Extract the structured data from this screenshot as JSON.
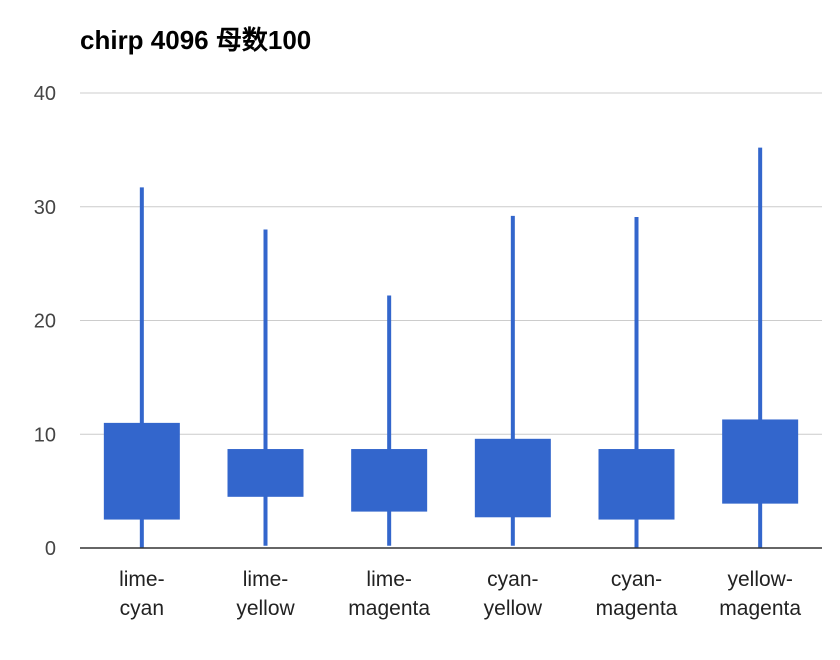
{
  "chart_data": {
    "type": "candlestick",
    "title": "chirp 4096 母数100",
    "xlabel": "",
    "ylabel": "",
    "ylim": [
      0,
      40
    ],
    "yticks": [
      0,
      10,
      20,
      30,
      40
    ],
    "grid": true,
    "legend": "none",
    "color": "#3366cc",
    "categories": [
      [
        "lime-",
        "cyan"
      ],
      [
        "lime-",
        "yellow"
      ],
      [
        "lime-",
        "magenta"
      ],
      [
        "cyan-",
        "yellow"
      ],
      [
        "cyan-",
        "magenta"
      ],
      [
        "yellow-",
        "magenta"
      ]
    ],
    "series": [
      {
        "low": 0.0,
        "q1": 2.5,
        "q3": 11.0,
        "high": 31.7
      },
      {
        "low": 0.2,
        "q1": 4.5,
        "q3": 8.7,
        "high": 28.0
      },
      {
        "low": 0.2,
        "q1": 3.2,
        "q3": 8.7,
        "high": 22.2
      },
      {
        "low": 0.2,
        "q1": 2.7,
        "q3": 9.6,
        "high": 29.2
      },
      {
        "low": 0.0,
        "q1": 2.5,
        "q3": 8.7,
        "high": 29.1
      },
      {
        "low": 0.0,
        "q1": 3.9,
        "q3": 11.3,
        "high": 35.2
      }
    ]
  }
}
